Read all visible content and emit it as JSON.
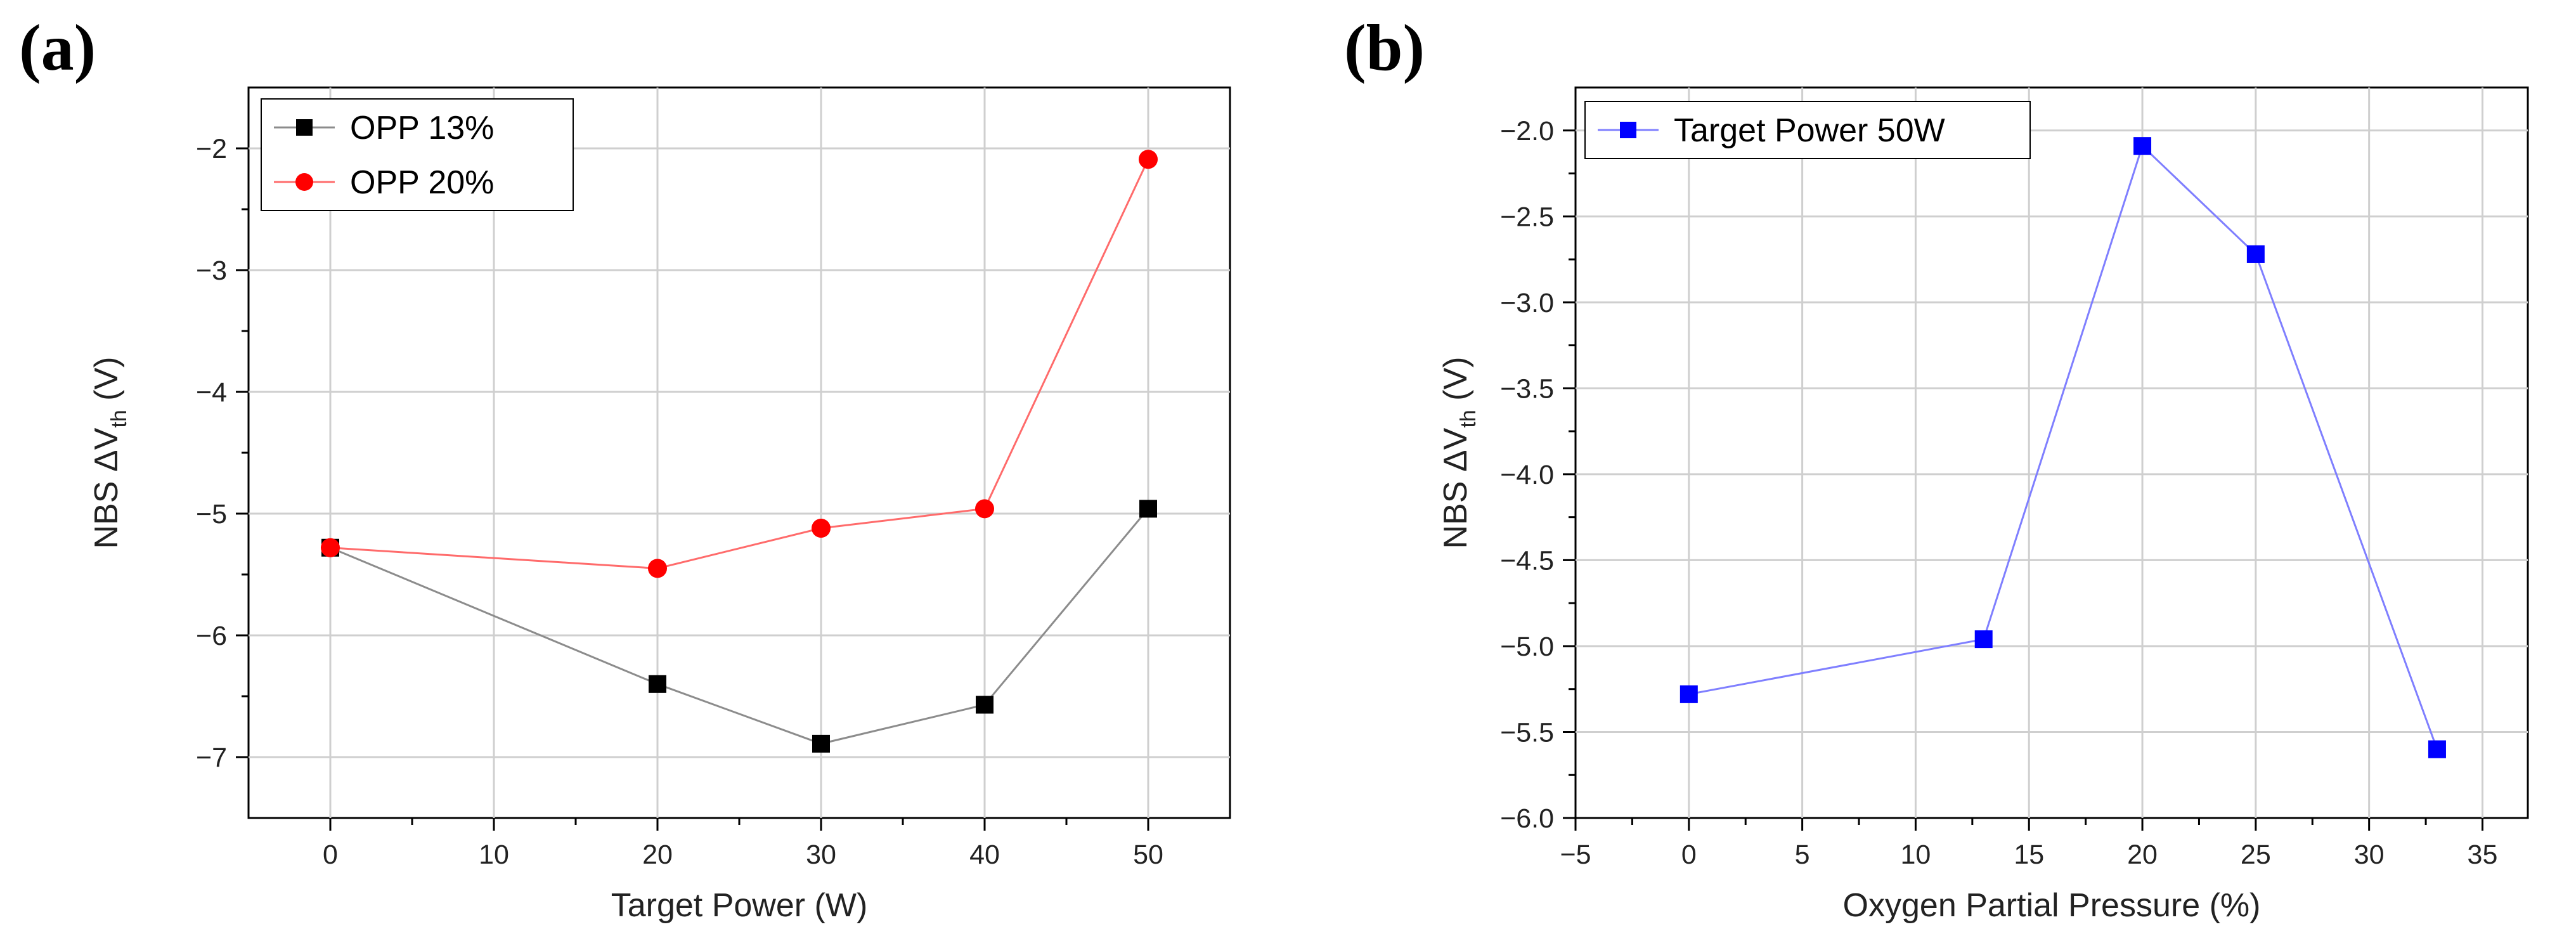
{
  "panel_labels": [
    "(a)",
    "(b)"
  ],
  "chart_data": [
    {
      "type": "line",
      "panel": "(a)",
      "title": "",
      "xlabel": "Target Power (W)",
      "ylabel": {
        "prefix": "NBS ΔV",
        "subscript": "th",
        "suffix": " (V)"
      },
      "xlim": [
        -5,
        55
      ],
      "ylim": [
        -7.5,
        -1.5
      ],
      "xticks": [
        0,
        10,
        20,
        30,
        40,
        50
      ],
      "yticks": [
        -7,
        -6,
        -5,
        -4,
        -3,
        -2
      ],
      "xtick_labels": [
        "0",
        "10",
        "20",
        "30",
        "40",
        "50"
      ],
      "ytick_labels": [
        "−7",
        "−6",
        "−5",
        "−4",
        "−3",
        "−2"
      ],
      "grid": true,
      "legend_position": "top-left",
      "series": [
        {
          "name": "OPP 13%",
          "color": "#000000",
          "line_color": "#8c8c8c",
          "marker": "square",
          "x": [
            0,
            20,
            30,
            40,
            50
          ],
          "y": [
            -5.28,
            -6.4,
            -6.89,
            -6.57,
            -4.96
          ]
        },
        {
          "name": "OPP 20%",
          "color": "#ff0000",
          "line_color": "#ff6b6b",
          "marker": "circle",
          "x": [
            0,
            20,
            30,
            40,
            50
          ],
          "y": [
            -5.28,
            -5.45,
            -5.12,
            -4.96,
            -2.09
          ]
        }
      ]
    },
    {
      "type": "line",
      "panel": "(b)",
      "title": "",
      "xlabel": "Oxygen Partial Pressure (%)",
      "ylabel": {
        "prefix": "NBS ΔV",
        "subscript": "th",
        "suffix": " (V)"
      },
      "xlim": [
        -5,
        37
      ],
      "ylim": [
        -6.0,
        -1.75
      ],
      "xticks": [
        -5,
        0,
        5,
        10,
        15,
        20,
        25,
        30,
        35
      ],
      "yticks": [
        -6.0,
        -5.5,
        -5.0,
        -4.5,
        -4.0,
        -3.5,
        -3.0,
        -2.5,
        -2.0
      ],
      "xtick_labels": [
        "−5",
        "0",
        "5",
        "10",
        "15",
        "20",
        "25",
        "30",
        "35"
      ],
      "ytick_labels": [
        "−6.0",
        "−5.5",
        "−5.0",
        "−4.5",
        "−4.0",
        "−3.5",
        "−3.0",
        "−2.5",
        "−2.0"
      ],
      "grid": true,
      "legend_position": "top-left",
      "series": [
        {
          "name": "Target Power 50W",
          "color": "#0000ff",
          "line_color": "#7f7fff",
          "marker": "square",
          "x": [
            0,
            13,
            20,
            25,
            33
          ],
          "y": [
            -5.28,
            -4.96,
            -2.09,
            -2.72,
            -5.6
          ]
        }
      ]
    }
  ]
}
